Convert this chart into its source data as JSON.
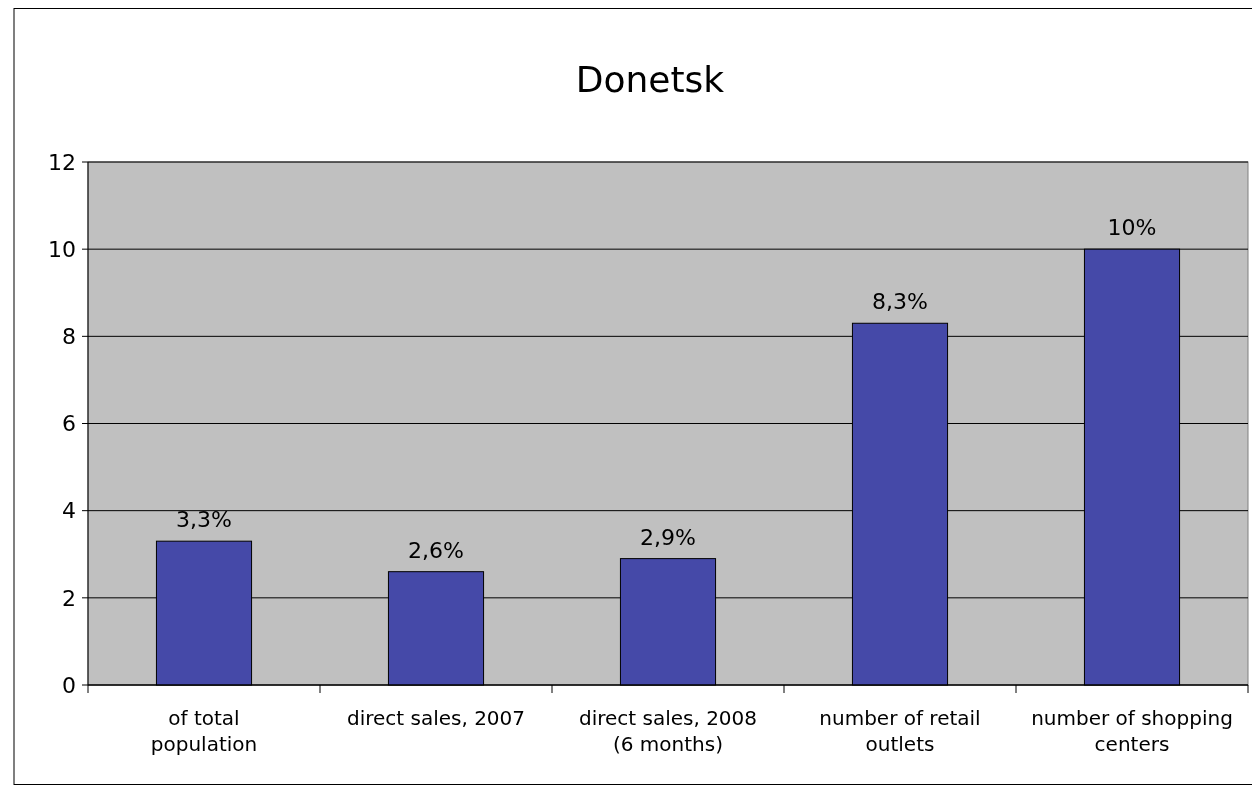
{
  "chart_data": {
    "type": "bar",
    "title": "Donetsk",
    "categories": [
      "of total population",
      "direct sales, 2007",
      "direct sales, 2008 (6 months)",
      "number of retail outlets",
      "number of shopping centers"
    ],
    "values": [
      3.3,
      2.6,
      2.9,
      8.3,
      10
    ],
    "value_labels": [
      "3,3%",
      "2,6%",
      "2,9%",
      "8,3%",
      "10%"
    ],
    "color": "#4549a8",
    "ylim": [
      0,
      12
    ],
    "yticks": [
      0,
      2,
      4,
      6,
      8,
      10,
      12
    ],
    "grid": "y"
  }
}
